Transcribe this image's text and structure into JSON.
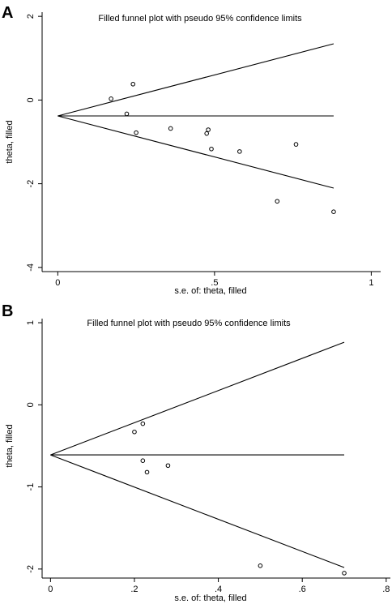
{
  "chart_data": [
    {
      "panel_label": "A",
      "type": "scatter",
      "title": "Filled funnel plot with pseudo 95% confidence limits",
      "xlabel": "s.e. of: theta, filled",
      "ylabel": "theta, filled",
      "xlim": [
        -0.05,
        1.03
      ],
      "ylim": [
        -4.1,
        2.1
      ],
      "xticks": [
        0,
        0.5,
        1
      ],
      "xtick_labels": [
        "0",
        ".5",
        "1"
      ],
      "yticks": [
        2,
        0,
        -2,
        -4
      ],
      "ytick_labels": [
        "2",
        "0",
        "-2",
        "-4"
      ],
      "pooled_theta": -0.38,
      "funnel_xmax": 0.88,
      "points": [
        {
          "x": 0.17,
          "y": 0.03
        },
        {
          "x": 0.24,
          "y": 0.38
        },
        {
          "x": 0.22,
          "y": -0.33
        },
        {
          "x": 0.25,
          "y": -0.78
        },
        {
          "x": 0.36,
          "y": -0.68
        },
        {
          "x": 0.48,
          "y": -0.71
        },
        {
          "x": 0.475,
          "y": -0.8
        },
        {
          "x": 0.49,
          "y": -1.17
        },
        {
          "x": 0.58,
          "y": -1.23
        },
        {
          "x": 0.76,
          "y": -1.06
        },
        {
          "x": 0.7,
          "y": -2.42
        },
        {
          "x": 0.88,
          "y": -2.67
        }
      ]
    },
    {
      "panel_label": "B",
      "type": "scatter",
      "title": "Filled funnel plot with pseudo 95% confidence limits",
      "xlabel": "s.e. of: theta, filled",
      "ylabel": "theta, filled",
      "xlim": [
        -0.02,
        0.81
      ],
      "ylim": [
        -2.11,
        1.05
      ],
      "xticks": [
        0,
        0.2,
        0.4,
        0.6,
        0.8
      ],
      "xtick_labels": [
        "0",
        ".2",
        ".4",
        ".6",
        ".8"
      ],
      "yticks": [
        1,
        0,
        -1,
        -2
      ],
      "ytick_labels": [
        "1",
        "0",
        "-1",
        "-2"
      ],
      "pooled_theta": -0.61,
      "funnel_xmax": 0.7,
      "points": [
        {
          "x": 0.2,
          "y": -0.33
        },
        {
          "x": 0.22,
          "y": -0.23
        },
        {
          "x": 0.22,
          "y": -0.68
        },
        {
          "x": 0.23,
          "y": -0.82
        },
        {
          "x": 0.28,
          "y": -0.74
        },
        {
          "x": 0.5,
          "y": -1.96
        },
        {
          "x": 0.7,
          "y": -2.05
        }
      ]
    }
  ]
}
